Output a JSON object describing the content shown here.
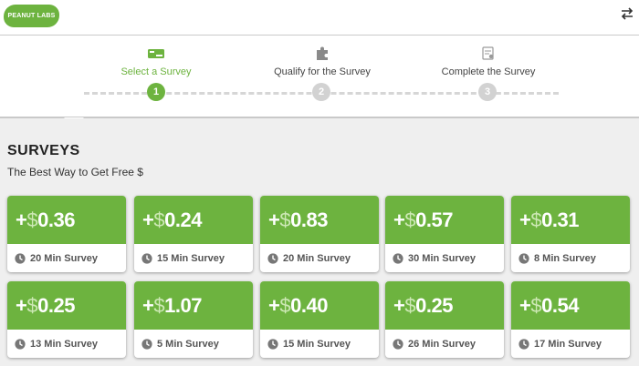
{
  "header": {
    "logo_text": "PEANUT LABS"
  },
  "steps": [
    {
      "label": "Select a Survey",
      "number": "1",
      "active": true
    },
    {
      "label": "Qualify for the Survey",
      "number": "2",
      "active": false
    },
    {
      "label": "Complete the Survey",
      "number": "3",
      "active": false
    }
  ],
  "section": {
    "title": "SURVEYS",
    "subtitle": "The Best Way to Get Free $"
  },
  "surveys": [
    {
      "plus": "+",
      "dollar": "$",
      "amount": "0.36",
      "duration": "20 Min Survey"
    },
    {
      "plus": "+",
      "dollar": "$",
      "amount": "0.24",
      "duration": "15 Min Survey"
    },
    {
      "plus": "+",
      "dollar": "$",
      "amount": "0.83",
      "duration": "20 Min Survey"
    },
    {
      "plus": "+",
      "dollar": "$",
      "amount": "0.57",
      "duration": "30 Min Survey"
    },
    {
      "plus": "+",
      "dollar": "$",
      "amount": "0.31",
      "duration": "8 Min Survey"
    },
    {
      "plus": "+",
      "dollar": "$",
      "amount": "0.25",
      "duration": "13 Min Survey"
    },
    {
      "plus": "+",
      "dollar": "$",
      "amount": "1.07",
      "duration": "5 Min Survey"
    },
    {
      "plus": "+",
      "dollar": "$",
      "amount": "0.40",
      "duration": "15 Min Survey"
    },
    {
      "plus": "+",
      "dollar": "$",
      "amount": "0.25",
      "duration": "26 Min Survey"
    },
    {
      "plus": "+",
      "dollar": "$",
      "amount": "0.54",
      "duration": "17 Min Survey"
    }
  ],
  "colors": {
    "accent": "#6db33f",
    "inactive_step": "#d2d2d2",
    "background": "#efefef"
  }
}
